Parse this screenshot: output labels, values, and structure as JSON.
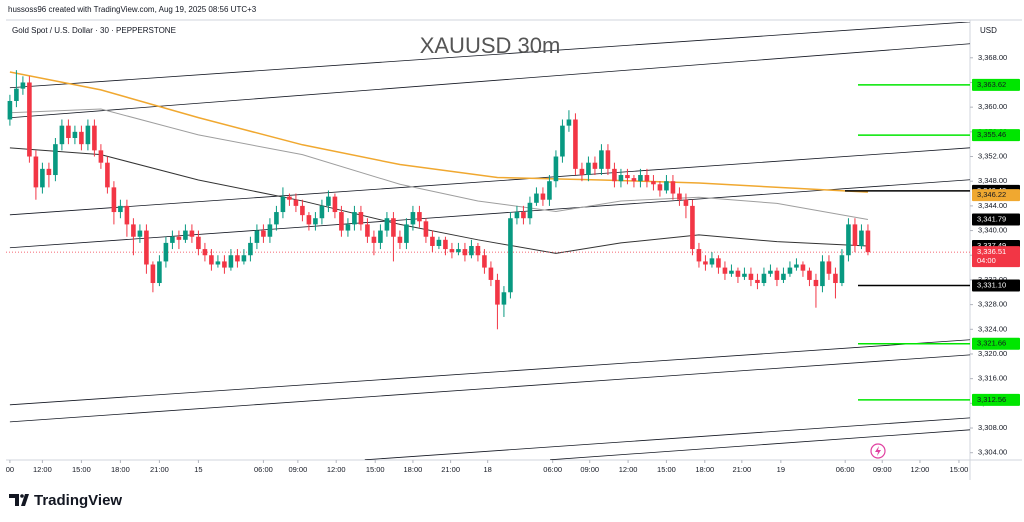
{
  "header": {
    "credit": "hussoss96 created with TradingView.com, Aug 19, 2025 08:56 UTC+3",
    "symbol": "Gold Spot / U.S. Dollar · 30 · PEPPERSTONE",
    "brand": "TradingView"
  },
  "chart_data": {
    "type": "candlestick",
    "title": "XAUUSD 30m",
    "currency": "USD",
    "up_color": "#089981",
    "down_color": "#f23645",
    "xlim": [
      -0.6,
      147.7
    ],
    "ylim": [
      3299.9,
      3373.8
    ],
    "xticks": [
      {
        "value": 0,
        "label": "00"
      },
      {
        "value": 5,
        "label": "12:00"
      },
      {
        "value": 11,
        "label": "15:00"
      },
      {
        "value": 17,
        "label": "18:00"
      },
      {
        "value": 23,
        "label": "21:00"
      },
      {
        "value": 29,
        "label": "15"
      },
      {
        "value": 39,
        "label": "06:00"
      },
      {
        "value": 44.3,
        "label": "09:00"
      },
      {
        "value": 50.2,
        "label": "12:00"
      },
      {
        "value": 56.2,
        "label": "15:00"
      },
      {
        "value": 62,
        "label": "18:00"
      },
      {
        "value": 67.8,
        "label": "21:00"
      },
      {
        "value": 73.5,
        "label": "18"
      },
      {
        "value": 83.5,
        "label": "06:00"
      },
      {
        "value": 89.2,
        "label": "09:00"
      },
      {
        "value": 95.1,
        "label": "12:00"
      },
      {
        "value": 101,
        "label": "15:00"
      },
      {
        "value": 106.9,
        "label": "18:00"
      },
      {
        "value": 112.6,
        "label": "21:00"
      },
      {
        "value": 118.6,
        "label": "19"
      },
      {
        "value": 128.5,
        "label": "06:00"
      },
      {
        "value": 134.2,
        "label": "09:00"
      },
      {
        "value": 140,
        "label": "12:00"
      },
      {
        "value": 146,
        "label": "15:00"
      }
    ],
    "yticks": [
      {
        "value": 3304,
        "label": "3,304.00"
      },
      {
        "value": 3308,
        "label": "3,308.00"
      },
      {
        "value": 3312,
        "label": "3,312.00"
      },
      {
        "value": 3316,
        "label": "3,316.00"
      },
      {
        "value": 3320,
        "label": "3,320.00"
      },
      {
        "value": 3324,
        "label": "3,324.00"
      },
      {
        "value": 3328,
        "label": "3,328.00"
      },
      {
        "value": 3332,
        "label": "3,332.00"
      },
      {
        "value": 3336,
        "label": "3,336.00"
      },
      {
        "value": 3340,
        "label": "3,340.00"
      },
      {
        "value": 3344,
        "label": "3,344.00"
      },
      {
        "value": 3348,
        "label": "3,348.00"
      },
      {
        "value": 3352,
        "label": "3,352.00"
      },
      {
        "value": 3356,
        "label": "3,356.00"
      },
      {
        "value": 3360,
        "label": "3,360.00"
      },
      {
        "value": 3364,
        "label": "3,364.00"
      },
      {
        "value": 3368,
        "label": "3,368.00"
      }
    ],
    "candles": [
      [
        3358,
        3362,
        3357,
        3361
      ],
      [
        3361,
        3366,
        3360,
        3363
      ],
      [
        3363,
        3365,
        3362,
        3364
      ],
      [
        3364,
        3365,
        3351,
        3352
      ],
      [
        3352,
        3353,
        3345,
        3347
      ],
      [
        3347,
        3351,
        3346,
        3350
      ],
      [
        3350,
        3351,
        3347,
        3349
      ],
      [
        3349,
        3355,
        3348,
        3354
      ],
      [
        3354,
        3358,
        3353,
        3357
      ],
      [
        3357,
        3358,
        3354,
        3355
      ],
      [
        3355,
        3357,
        3354,
        3356
      ],
      [
        3356,
        3357,
        3353,
        3354
      ],
      [
        3354,
        3358,
        3353,
        3357
      ],
      [
        3357,
        3358,
        3352,
        3353
      ],
      [
        3353,
        3354,
        3350,
        3351
      ],
      [
        3351,
        3352,
        3346,
        3347
      ],
      [
        3347,
        3348,
        3341,
        3343
      ],
      [
        3343,
        3345,
        3342,
        3344
      ],
      [
        3344,
        3345,
        3339,
        3341
      ],
      [
        3341,
        3342,
        3336,
        3339
      ],
      [
        3339,
        3341,
        3338,
        3340
      ],
      [
        3340,
        3341,
        3333,
        3334.5
      ],
      [
        3334.5,
        3335,
        3330,
        3331.5
      ],
      [
        3331.5,
        3336,
        3331,
        3335
      ],
      [
        3335,
        3339,
        3334,
        3338
      ],
      [
        3338,
        3340,
        3337,
        3339
      ],
      [
        3339,
        3340,
        3337,
        3338.5
      ],
      [
        3338.5,
        3341,
        3338,
        3340
      ],
      [
        3340,
        3341,
        3338,
        3339
      ],
      [
        3339,
        3340,
        3336,
        3337
      ],
      [
        3337,
        3338,
        3335,
        3336
      ],
      [
        3336,
        3337,
        3333.5,
        3334.5
      ],
      [
        3334.5,
        3336,
        3334,
        3335
      ],
      [
        3335,
        3336,
        3333,
        3334
      ],
      [
        3334,
        3337,
        3333.5,
        3336
      ],
      [
        3336,
        3337,
        3334,
        3335
      ],
      [
        3335,
        3337,
        3334.5,
        3336
      ],
      [
        3336,
        3339,
        3335,
        3338
      ],
      [
        3338,
        3341,
        3337,
        3340
      ],
      [
        3340,
        3341,
        3338,
        3339
      ],
      [
        3339,
        3342,
        3338,
        3341
      ],
      [
        3341,
        3344,
        3340,
        3343
      ],
      [
        3343,
        3347,
        3342,
        3345.5
      ],
      [
        3345.5,
        3346,
        3344,
        3345
      ],
      [
        3345,
        3346,
        3343,
        3344
      ],
      [
        3344,
        3345,
        3341.5,
        3342.5
      ],
      [
        3342.5,
        3343,
        3340,
        3341
      ],
      [
        3341,
        3343,
        3340,
        3342
      ],
      [
        3342,
        3345,
        3341,
        3344
      ],
      [
        3344,
        3346.5,
        3343,
        3345.5
      ],
      [
        3345.5,
        3346,
        3342,
        3343
      ],
      [
        3343,
        3344,
        3339,
        3340
      ],
      [
        3340,
        3342,
        3339,
        3341
      ],
      [
        3341,
        3344,
        3340,
        3343
      ],
      [
        3343,
        3344,
        3340,
        3341
      ],
      [
        3341,
        3342,
        3338,
        3339
      ],
      [
        3339,
        3340,
        3336,
        3338
      ],
      [
        3338,
        3341,
        3337,
        3340
      ],
      [
        3340,
        3343,
        3339,
        3342
      ],
      [
        3342,
        3343,
        3335,
        3339
      ],
      [
        3339,
        3340,
        3337,
        3338
      ],
      [
        3338,
        3342,
        3337,
        3341
      ],
      [
        3341,
        3344,
        3340,
        3343
      ],
      [
        3343,
        3344,
        3340.5,
        3341.5
      ],
      [
        3341.5,
        3342,
        3338,
        3339
      ],
      [
        3339,
        3340,
        3336.5,
        3337.5
      ],
      [
        3337.5,
        3339,
        3337,
        3338.5
      ],
      [
        3338.5,
        3339,
        3336,
        3337
      ],
      [
        3337,
        3338,
        3335.5,
        3336.5
      ],
      [
        3336.5,
        3338,
        3336,
        3337
      ],
      [
        3337,
        3338,
        3335,
        3336
      ],
      [
        3336,
        3338.5,
        3335.5,
        3337.5
      ],
      [
        3337.5,
        3338,
        3335,
        3336
      ],
      [
        3336,
        3337,
        3333,
        3334
      ],
      [
        3334,
        3335,
        3331,
        3332
      ],
      [
        3332,
        3333,
        3324,
        3328
      ],
      [
        3328,
        3331,
        3326,
        3330
      ],
      [
        3330,
        3343,
        3329,
        3342
      ],
      [
        3342,
        3344,
        3341,
        3343
      ],
      [
        3343,
        3344,
        3341,
        3342
      ],
      [
        3342,
        3345.5,
        3341,
        3344.5
      ],
      [
        3344.5,
        3347,
        3344,
        3346
      ],
      [
        3346,
        3347,
        3344,
        3345
      ],
      [
        3345,
        3349,
        3344,
        3348
      ],
      [
        3348,
        3353,
        3347,
        3352
      ],
      [
        3352,
        3358,
        3351,
        3357
      ],
      [
        3357,
        3359.5,
        3356,
        3358
      ],
      [
        3358,
        3359,
        3349,
        3350
      ],
      [
        3350,
        3351,
        3348,
        3349
      ],
      [
        3349,
        3352,
        3348,
        3351
      ],
      [
        3351,
        3352,
        3349,
        3350
      ],
      [
        3350,
        3354,
        3349,
        3353
      ],
      [
        3353,
        3354,
        3349,
        3350
      ],
      [
        3350,
        3351,
        3347,
        3348
      ],
      [
        3348,
        3350,
        3347,
        3349
      ],
      [
        3349,
        3350,
        3347.5,
        3348.5
      ],
      [
        3348.5,
        3349,
        3347,
        3348
      ],
      [
        3348,
        3350,
        3347,
        3349
      ],
      [
        3349,
        3350,
        3347,
        3348
      ],
      [
        3348,
        3349,
        3346.5,
        3347.5
      ],
      [
        3347.5,
        3348,
        3345.5,
        3346.5
      ],
      [
        3346.5,
        3349,
        3346,
        3348
      ],
      [
        3348,
        3349,
        3345,
        3346
      ],
      [
        3346,
        3347,
        3344,
        3345
      ],
      [
        3345,
        3346,
        3342,
        3344
      ],
      [
        3344,
        3345,
        3336,
        3337
      ],
      [
        3337,
        3338,
        3334,
        3335
      ],
      [
        3335,
        3336,
        3333.5,
        3334.5
      ],
      [
        3334.5,
        3336.5,
        3334,
        3335.5
      ],
      [
        3335.5,
        3336,
        3333,
        3334
      ],
      [
        3334,
        3335,
        3332,
        3333
      ],
      [
        3333,
        3334.5,
        3332.5,
        3333.5
      ],
      [
        3333.5,
        3334,
        3331.5,
        3332.5
      ],
      [
        3332.5,
        3334,
        3332,
        3333
      ],
      [
        3333,
        3334,
        3331,
        3332
      ],
      [
        3332,
        3333,
        3330.5,
        3331.5
      ],
      [
        3331.5,
        3334,
        3331,
        3333
      ],
      [
        3333,
        3334.5,
        3332.5,
        3333.5
      ],
      [
        3333.5,
        3334,
        3331,
        3332
      ],
      [
        3332,
        3334,
        3331.5,
        3333
      ],
      [
        3333,
        3335,
        3332.5,
        3334
      ],
      [
        3334,
        3335.5,
        3333.5,
        3334.5
      ],
      [
        3334.5,
        3335,
        3332.5,
        3333.5
      ],
      [
        3333.5,
        3334,
        3331,
        3332
      ],
      [
        3332,
        3333,
        3327.5,
        3331
      ],
      [
        3331,
        3336,
        3330,
        3335
      ],
      [
        3335,
        3336,
        3332,
        3333
      ],
      [
        3333,
        3334,
        3329,
        3331.5
      ],
      [
        3331.5,
        3337,
        3331,
        3336
      ],
      [
        3336,
        3342,
        3335,
        3341
      ],
      [
        3341,
        3342,
        3336.5,
        3337.5
      ],
      [
        3337.5,
        3341,
        3337,
        3340
      ],
      [
        3340,
        3341,
        3336,
        3336.5
      ]
    ],
    "moving_averages": [
      {
        "color": "#f0a830",
        "x": [
          0,
          14,
          29,
          45,
          60,
          75,
          91,
          106,
          132
        ],
        "values": [
          3365.7,
          3362.8,
          3358.3,
          3353.9,
          3350.7,
          3348.6,
          3348.2,
          3347.7,
          3346.22
        ],
        "label": "3,346.22"
      },
      {
        "color": "#9e9e9e",
        "x": [
          0,
          14,
          29,
          45,
          60,
          72,
          84,
          94,
          106,
          118,
          132
        ],
        "values": [
          3359.1,
          3359.7,
          3355.5,
          3352.3,
          3347.5,
          3344.8,
          3343.1,
          3344.8,
          3345.4,
          3344.4,
          3341.79
        ],
        "label": "3,341.79"
      },
      {
        "color": "#333333",
        "x": [
          0,
          14,
          29,
          45,
          60,
          72,
          84,
          94,
          106,
          118,
          132
        ],
        "values": [
          3353.4,
          3352.3,
          3348.2,
          3344.8,
          3341.0,
          3338.5,
          3336.3,
          3338.0,
          3339.3,
          3338.2,
          3337.49
        ],
        "label": "3,337.49"
      }
    ],
    "trendlines": [
      {
        "x": [
          0,
          147.7
        ],
        "y": [
          3363.14,
          3373.83
        ]
      },
      {
        "x": [
          0,
          147.7
        ],
        "y": [
          3358.28,
          3370.27
        ]
      },
      {
        "x": [
          0,
          147.7
        ],
        "y": [
          3342.55,
          3353.41
        ]
      },
      {
        "x": [
          0,
          147.7
        ],
        "y": [
          3337.21,
          3348.23
        ]
      },
      {
        "x": [
          0,
          147.7
        ],
        "y": [
          3311.76,
          3322.3
        ]
      },
      {
        "x": [
          0,
          147.7
        ],
        "y": [
          3309.0,
          3319.86
        ]
      },
      {
        "x": [
          54.6,
          147.7
        ],
        "y": [
          3302.85,
          3309.65
        ]
      },
      {
        "x": [
          83.1,
          147.7
        ],
        "y": [
          3302.85,
          3307.71
        ]
      }
    ],
    "levels": [
      {
        "value": 3363.62,
        "label": "3,363.62",
        "color": "#00e600"
      },
      {
        "value": 3355.46,
        "label": "3,355.46",
        "color": "#00e600"
      },
      {
        "value": 3346.43,
        "label": "3,346.43",
        "color": "#000000"
      },
      {
        "value": 3331.1,
        "label": "3,331.10",
        "color": "#000000"
      },
      {
        "value": 3321.66,
        "label": "3,321.66",
        "color": "#00e600"
      },
      {
        "value": 3312.56,
        "label": "3,312.56",
        "color": "#00e600"
      }
    ],
    "current_price": {
      "value": 3336.51,
      "label": "3,336.51",
      "countdown": "04:00",
      "color": "#f23645"
    }
  }
}
